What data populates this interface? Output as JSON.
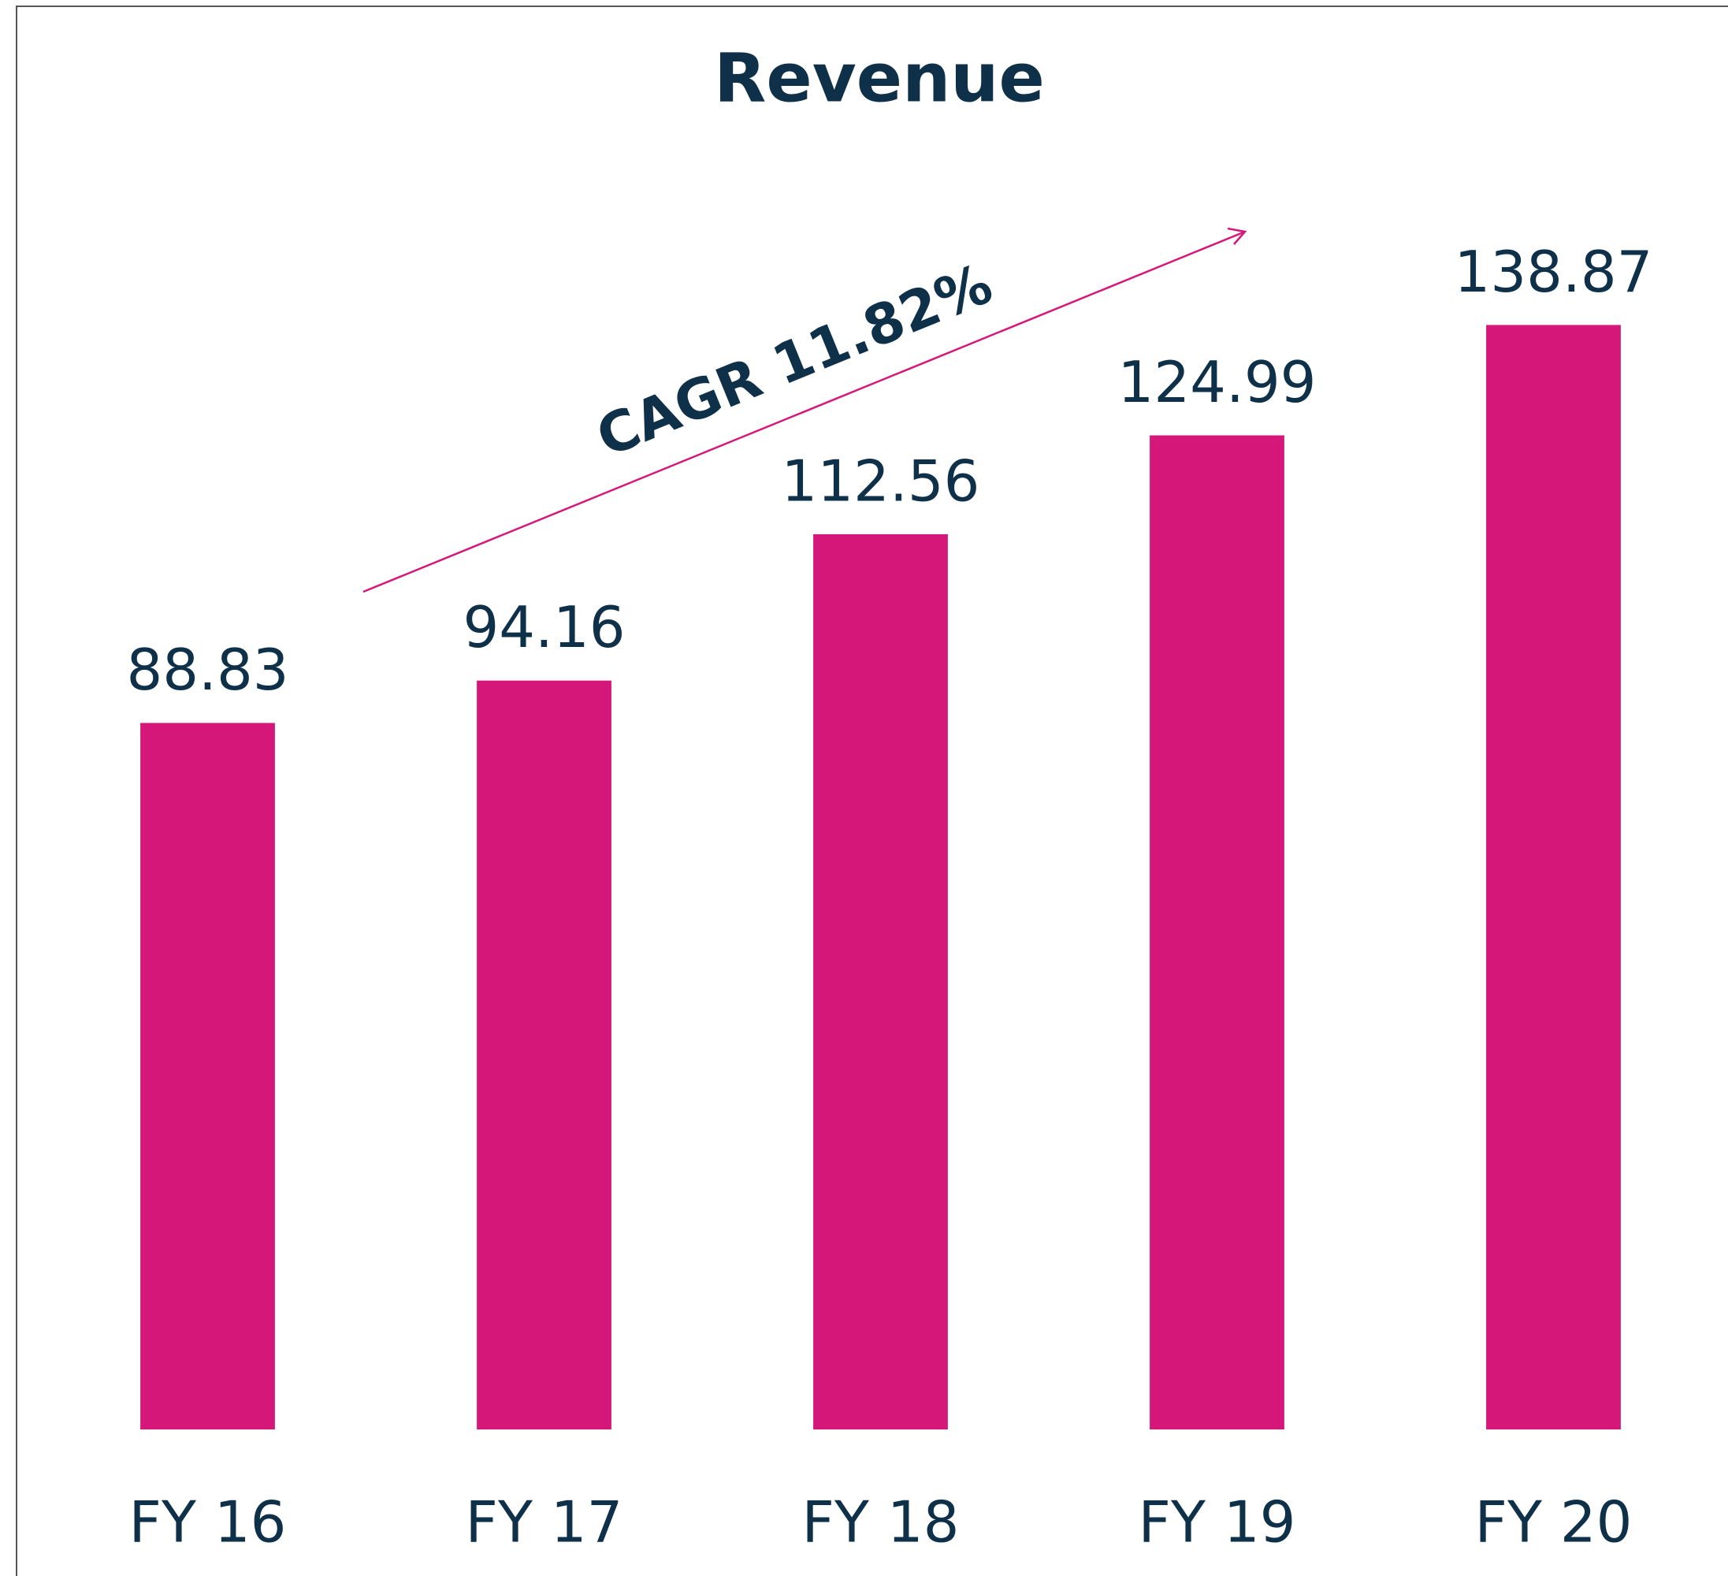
{
  "chart_data": {
    "type": "bar",
    "title": "Revenue",
    "annotation": "CAGR 11.82%",
    "categories": [
      "FY 16",
      "FY 17",
      "FY 18",
      "FY 19",
      "FY 20"
    ],
    "values": [
      88.83,
      94.16,
      112.56,
      124.99,
      138.87
    ],
    "color": "#d6177a",
    "ylim": [
      0,
      140
    ]
  }
}
